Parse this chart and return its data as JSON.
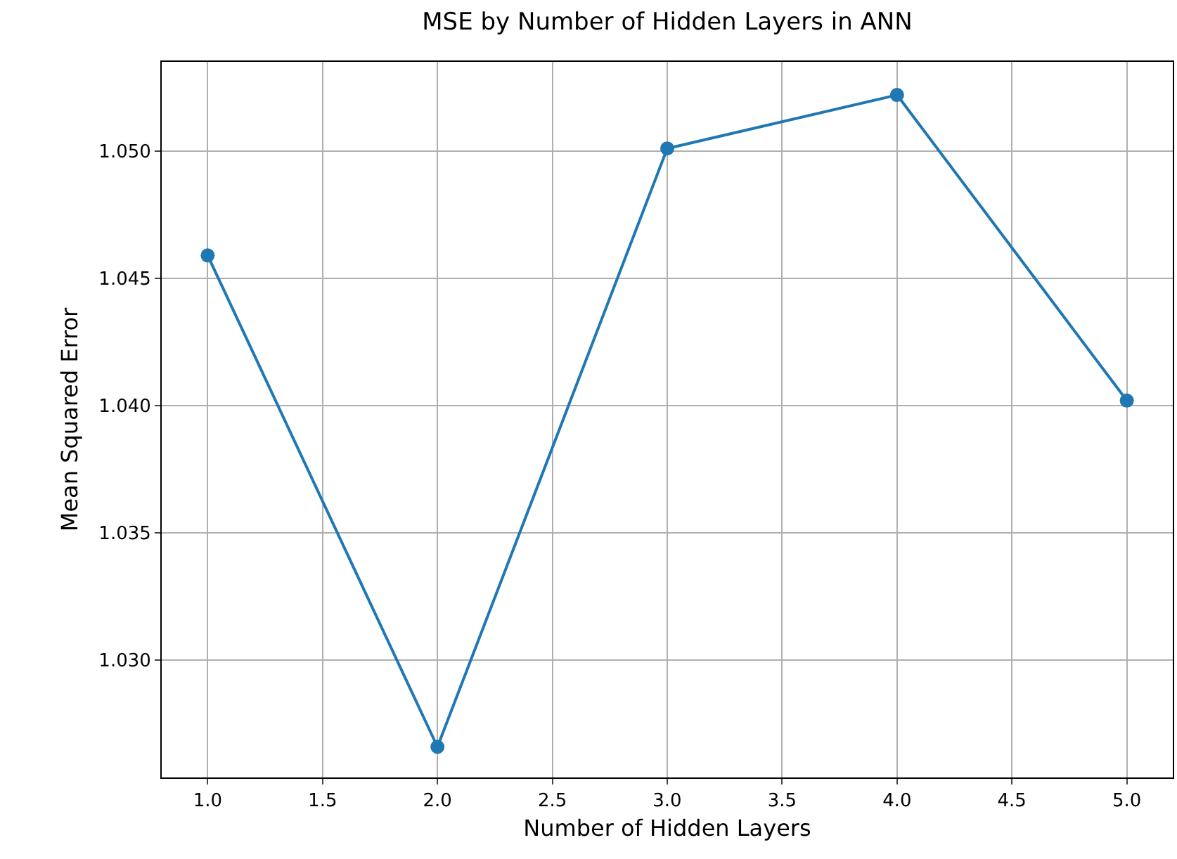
{
  "chart_data": {
    "type": "line",
    "title": "MSE by Number of Hidden Layers in ANN",
    "xlabel": "Number of Hidden Layers",
    "ylabel": "Mean Squared Error",
    "x": [
      1,
      2,
      3,
      4,
      5
    ],
    "series": [
      {
        "color": "#1f77b4",
        "values": [
          1.0459,
          1.0266,
          1.0501,
          1.0522,
          1.0402
        ]
      }
    ],
    "xlim": [
      0.8,
      5.2
    ],
    "xticks": [
      {
        "value": 1,
        "label": "1.0"
      },
      {
        "value": 1.5,
        "label": "1.5"
      },
      {
        "value": 2,
        "label": "2.0"
      },
      {
        "value": 2.5,
        "label": "2.5"
      },
      {
        "value": 3,
        "label": "3.0"
      },
      {
        "value": 3.5,
        "label": "3.5"
      },
      {
        "value": 4,
        "label": "4.0"
      },
      {
        "value": 4.5,
        "label": "4.5"
      },
      {
        "value": 5,
        "label": "5.0"
      }
    ],
    "ylim": [
      1.0254,
      1.0535
    ],
    "yticks": [
      {
        "value": 1.03,
        "label": "1.030"
      },
      {
        "value": 1.035,
        "label": "1.035"
      },
      {
        "value": 1.04,
        "label": "1.040"
      },
      {
        "value": 1.045,
        "label": "1.045"
      },
      {
        "value": 1.05,
        "label": "1.050"
      }
    ],
    "grid": true,
    "marker": "circle",
    "line_style": "solid",
    "legend": false
  }
}
